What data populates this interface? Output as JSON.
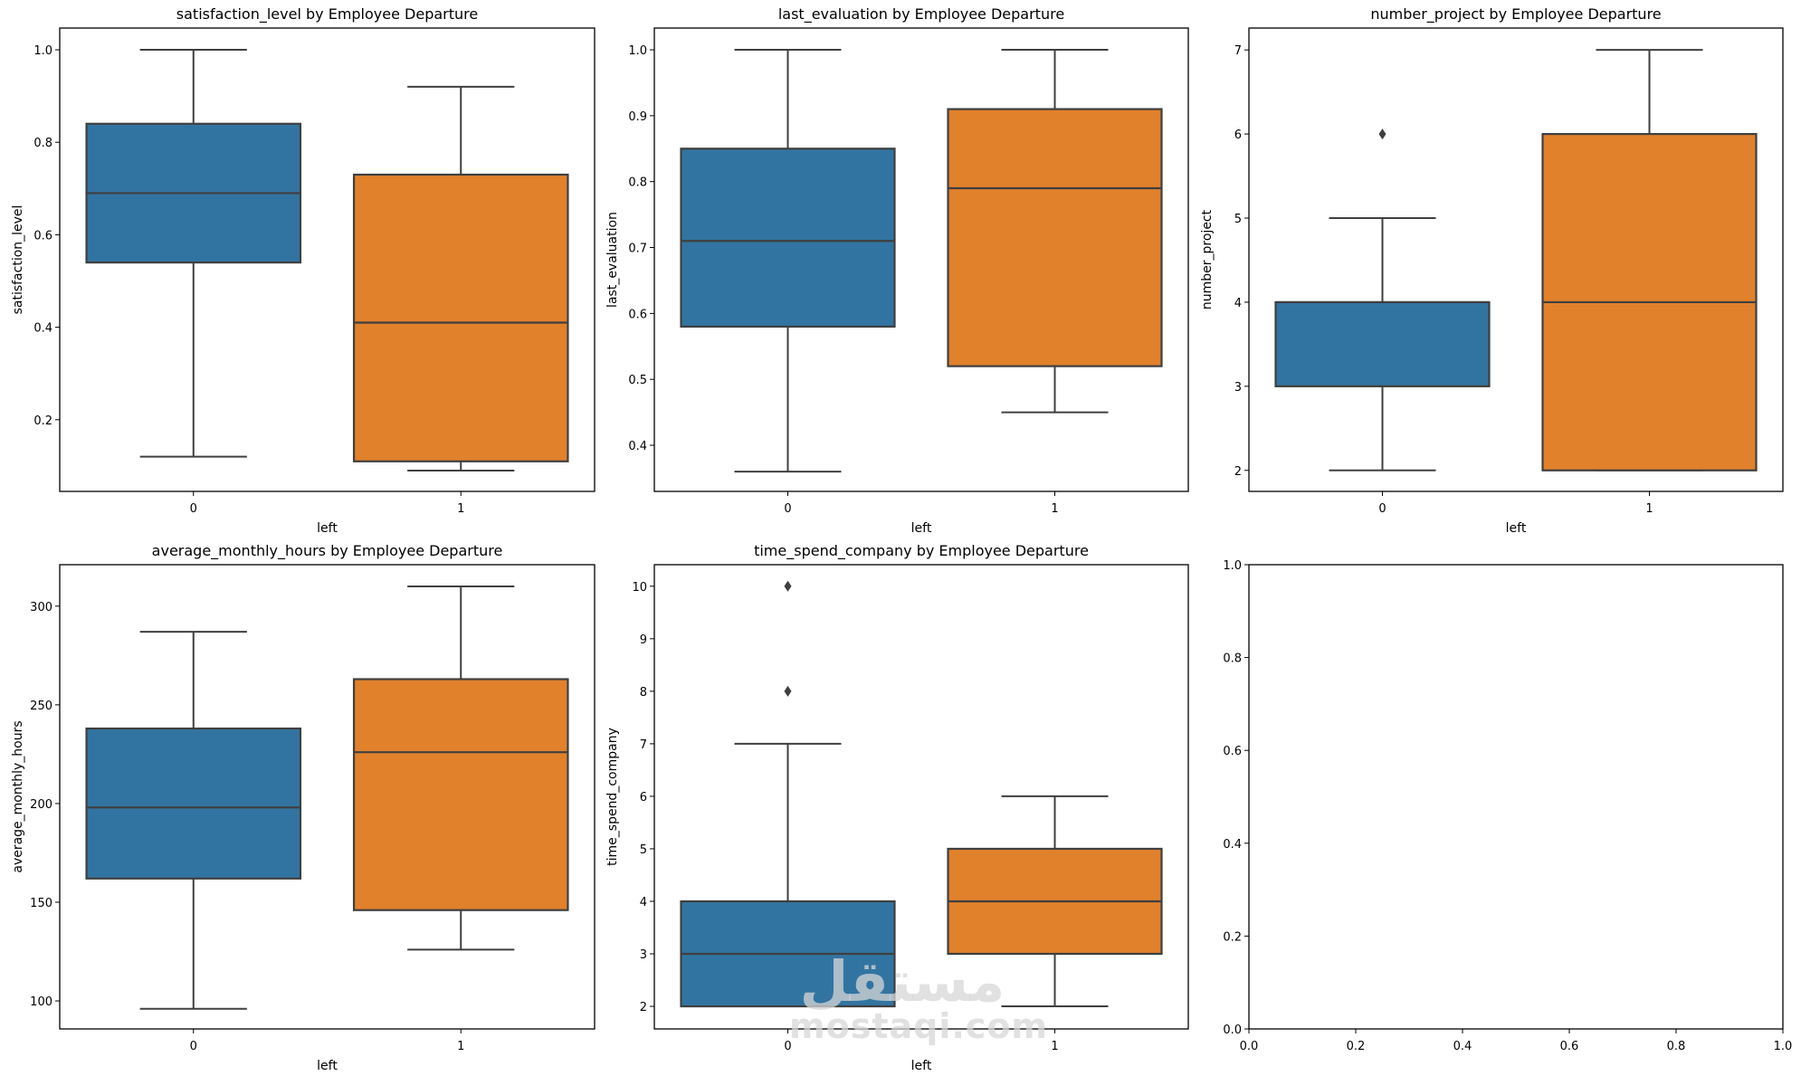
{
  "figure": {
    "colors": {
      "category_0": "#3274a1",
      "category_1": "#e1812c",
      "line": "#3f3f3f",
      "frame": "#000000"
    },
    "watermark": {
      "arabic": "مستقل",
      "latin": "mostaqi.com"
    }
  },
  "chart_data": [
    {
      "type": "box",
      "title": "satisfaction_level by Employee Departure",
      "xlabel": "left",
      "ylabel": "satisfaction_level",
      "categories": [
        "0",
        "1"
      ],
      "ylim": [
        0.045,
        1.047
      ],
      "yticks": [
        0.2,
        0.4,
        0.6,
        0.8,
        1.0
      ],
      "ytick_labels": [
        "0.2",
        "0.4",
        "0.6",
        "0.8",
        "1.0"
      ],
      "boxes": [
        {
          "category": "0",
          "min": 0.12,
          "q1": 0.54,
          "median": 0.69,
          "q3": 0.84,
          "max": 1.0,
          "outliers": []
        },
        {
          "category": "1",
          "min": 0.09,
          "q1": 0.11,
          "median": 0.41,
          "q3": 0.73,
          "max": 0.92,
          "outliers": []
        }
      ]
    },
    {
      "type": "box",
      "title": "last_evaluation by Employee Departure",
      "xlabel": "left",
      "ylabel": "last_evaluation",
      "categories": [
        "0",
        "1"
      ],
      "ylim": [
        0.33,
        1.033
      ],
      "yticks": [
        0.4,
        0.5,
        0.6,
        0.7,
        0.8,
        0.9,
        1.0
      ],
      "ytick_labels": [
        "0.4",
        "0.5",
        "0.6",
        "0.7",
        "0.8",
        "0.9",
        "1.0"
      ],
      "boxes": [
        {
          "category": "0",
          "min": 0.36,
          "q1": 0.58,
          "median": 0.71,
          "q3": 0.85,
          "max": 1.0,
          "outliers": []
        },
        {
          "category": "1",
          "min": 0.45,
          "q1": 0.52,
          "median": 0.79,
          "q3": 0.91,
          "max": 1.0,
          "outliers": []
        }
      ]
    },
    {
      "type": "box",
      "title": "number_project by Employee Departure",
      "xlabel": "left",
      "ylabel": "number_project",
      "categories": [
        "0",
        "1"
      ],
      "ylim": [
        1.75,
        7.26
      ],
      "yticks": [
        2,
        3,
        4,
        5,
        6,
        7
      ],
      "ytick_labels": [
        "2",
        "3",
        "4",
        "5",
        "6",
        "7"
      ],
      "boxes": [
        {
          "category": "0",
          "min": 2,
          "q1": 3,
          "median": 4,
          "q3": 4,
          "max": 5,
          "outliers": [
            6
          ]
        },
        {
          "category": "1",
          "min": 2,
          "q1": 2,
          "median": 4,
          "q3": 6,
          "max": 7,
          "outliers": []
        }
      ]
    },
    {
      "type": "box",
      "title": "average_monthly_hours by Employee Departure",
      "xlabel": "left",
      "ylabel": "average_monthly_hours",
      "categories": [
        "0",
        "1"
      ],
      "ylim": [
        85.8,
        321
      ],
      "yticks": [
        100,
        150,
        200,
        250,
        300
      ],
      "ytick_labels": [
        "100",
        "150",
        "200",
        "250",
        "300"
      ],
      "boxes": [
        {
          "category": "0",
          "min": 96,
          "q1": 162,
          "median": 198,
          "q3": 238,
          "max": 287,
          "outliers": []
        },
        {
          "category": "1",
          "min": 126,
          "q1": 146,
          "median": 226,
          "q3": 263,
          "max": 310,
          "outliers": []
        }
      ]
    },
    {
      "type": "box",
      "title": "time_spend_company by Employee Departure",
      "xlabel": "left",
      "ylabel": "time_spend_company",
      "categories": [
        "0",
        "1"
      ],
      "ylim": [
        1.57,
        10.41
      ],
      "yticks": [
        2,
        3,
        4,
        5,
        6,
        7,
        8,
        9,
        10
      ],
      "ytick_labels": [
        "2",
        "3",
        "4",
        "5",
        "6",
        "7",
        "8",
        "9",
        "10"
      ],
      "boxes": [
        {
          "category": "0",
          "min": 2,
          "q1": 2,
          "median": 3,
          "q3": 4,
          "max": 7,
          "outliers": [
            8,
            10
          ]
        },
        {
          "category": "1",
          "min": 2,
          "q1": 3,
          "median": 4,
          "q3": 5,
          "max": 6,
          "outliers": []
        }
      ]
    },
    {
      "type": "empty",
      "title": "",
      "xlabel": "",
      "ylabel": "",
      "xlim": [
        0,
        1
      ],
      "ylim": [
        0,
        1
      ],
      "xticks": [
        0.0,
        0.2,
        0.4,
        0.6,
        0.8,
        1.0
      ],
      "xtick_labels": [
        "0.0",
        "0.2",
        "0.4",
        "0.6",
        "0.8",
        "1.0"
      ],
      "yticks": [
        0.0,
        0.2,
        0.4,
        0.6,
        0.8,
        1.0
      ],
      "ytick_labels": [
        "0.0",
        "0.2",
        "0.4",
        "0.6",
        "0.8",
        "1.0"
      ]
    }
  ]
}
